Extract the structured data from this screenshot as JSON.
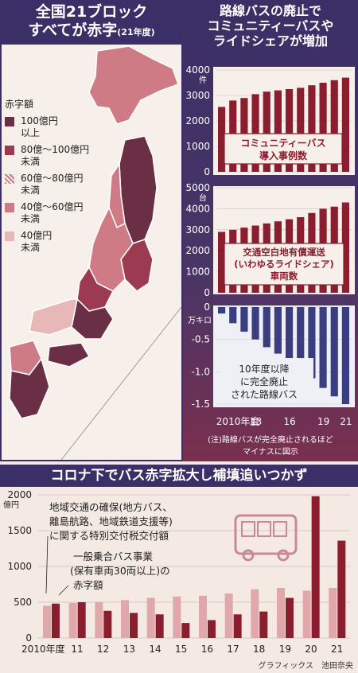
{
  "left_panel": {
    "title_line1": "全国21ブロック",
    "title_line2": "すべてが赤字",
    "title_sub": "(21年度)",
    "legend_title": "赤字額",
    "legend": [
      {
        "label": "100億円",
        "label2": "以上",
        "color": "#6b2f45"
      },
      {
        "label": "80億～100億円",
        "label2": "未満",
        "color": "#9c3a52"
      },
      {
        "label": "60億～80億円",
        "label2": "未満",
        "color": "#c97a8a"
      },
      {
        "label": "40億～60億円",
        "label2": "未満",
        "color": "#cf7b86"
      },
      {
        "label": "40億円",
        "label2": "未満",
        "color": "#e8b7b8"
      }
    ]
  },
  "right_panel": {
    "title_line1": "路線バスの廃止で",
    "title_line2": "コミュニティーバスや",
    "title_line3": "ライドシェアが増加",
    "note_line1": "(注)路線バスが完全廃止されるほど",
    "note_line2": "マイナスに図示"
  },
  "bottom_panel": {
    "title": "コロナ下でバス赤字拡大し補填追いつかず",
    "credit": "グラフィックス　池田奈央"
  },
  "chart_data": [
    {
      "type": "bar",
      "title": "コミュニティーバス導入事例数",
      "title_line1": "コミュニティーバス",
      "title_line2": "導入事例数",
      "y_unit": "件",
      "ylim": [
        0,
        4000
      ],
      "y_ticks": [
        "4000",
        "3000",
        "2000",
        "1000",
        "0"
      ],
      "x": [
        2010,
        2011,
        2012,
        2013,
        2014,
        2015,
        2016,
        2017,
        2018,
        2019,
        2020,
        2021
      ],
      "values": [
        2550,
        2800,
        2900,
        3050,
        3150,
        3200,
        3250,
        3300,
        3400,
        3500,
        3600,
        3700
      ],
      "color": "#8b1e2e"
    },
    {
      "type": "bar",
      "title": "交通空白地有償運送(いわゆるライドシェア)車両数",
      "title_line1": "交通空白地有償運送",
      "title_line2": "(いわゆるライドシェア)",
      "title_line3": "車両数",
      "y_unit": "台",
      "ylim": [
        0,
        5000
      ],
      "y_ticks": [
        "5000",
        "4000",
        "3000",
        "2000",
        "1000",
        "0"
      ],
      "x": [
        2010,
        2011,
        2012,
        2013,
        2014,
        2015,
        2016,
        2017,
        2018,
        2019,
        2020,
        2021
      ],
      "values": [
        2900,
        3000,
        3100,
        3200,
        3300,
        3400,
        3500,
        3600,
        3800,
        4000,
        4100,
        4300
      ],
      "color": "#8b1e2e"
    },
    {
      "type": "bar",
      "title": "10年度以降に完全廃止された路線バス",
      "title_line1": "10年度以降",
      "title_line2": "に完全廃止",
      "title_line3": "された路線バス",
      "y_unit": "万キロ",
      "ylim": [
        -1.5,
        0
      ],
      "y_ticks": [
        "0",
        "-0.5",
        "-1.0",
        "-1.5"
      ],
      "x": [
        2010,
        2011,
        2012,
        2013,
        2014,
        2015,
        2016,
        2017,
        2018,
        2019,
        2020,
        2021
      ],
      "x_tick_labels": [
        "2010年度",
        "13",
        "16",
        "19",
        "21"
      ],
      "values": [
        -0.1,
        -0.25,
        -0.38,
        -0.5,
        -0.62,
        -0.72,
        -0.85,
        -0.98,
        -1.1,
        -1.25,
        -1.38,
        -1.5
      ],
      "color": "#3a3e80"
    },
    {
      "type": "bar",
      "y_unit": "億円",
      "ylim": [
        0,
        2000
      ],
      "y_ticks": [
        "2000",
        "1500",
        "1000",
        "500",
        "0"
      ],
      "categories": [
        "2010年度",
        "11",
        "12",
        "13",
        "14",
        "15",
        "16",
        "17",
        "18",
        "19",
        "20",
        "21"
      ],
      "series": [
        {
          "name": "地域交通の確保(地方バス、離島航路、地域鉄道支援等)に関する特別交付税交付額",
          "name_line1": "地域交通の確保(地方バス、",
          "name_line2": "離島航路、地域鉄道支援等)",
          "name_line3": "に関する特別交付税交付額",
          "values": [
            450,
            490,
            500,
            530,
            560,
            580,
            590,
            620,
            680,
            700,
            660,
            700
          ],
          "color": "#e0a8aa"
        },
        {
          "name": "一般乗合バス事業(保有車両30両以上)の赤字額",
          "name_line1": "一般乗合バス事業",
          "name_line2": "(保有車両30両以上)の",
          "name_line3": "赤字額",
          "values": [
            480,
            500,
            380,
            350,
            330,
            210,
            250,
            330,
            370,
            560,
            1980,
            1360
          ],
          "color": "#8b1e2e"
        }
      ]
    }
  ]
}
